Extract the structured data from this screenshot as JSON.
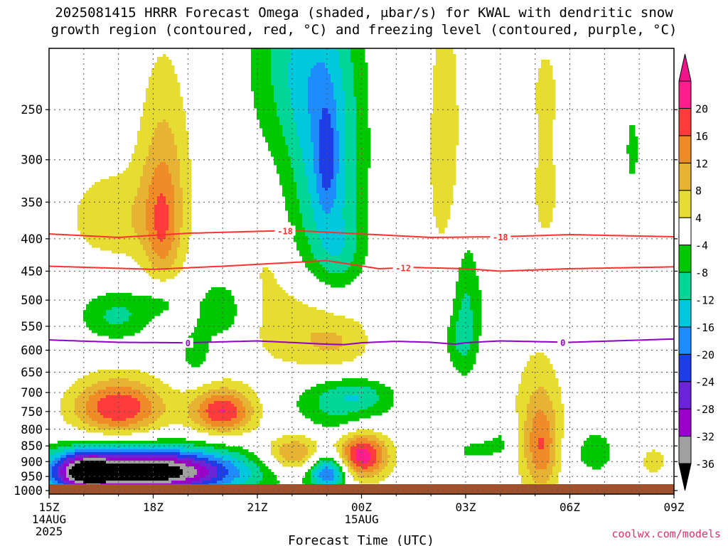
{
  "title": {
    "line1": "2025081415 HRRR Forecast Omega (shaded, μbar/s) for KWAL with dendritic snow",
    "line2": "growth region (contoured, red, °C) and freezing level (contoured, purple, °C)"
  },
  "credit": "coolwx.com/models",
  "chart_data": {
    "type": "heatmap",
    "xlabel": "Forecast Time (UTC)",
    "ylabel": "",
    "x_ticks": [
      {
        "hour": 0,
        "label": "15Z",
        "sub1": "14AUG",
        "sub2": "2025"
      },
      {
        "hour": 3,
        "label": "18Z",
        "sub1": "",
        "sub2": ""
      },
      {
        "hour": 6,
        "label": "21Z",
        "sub1": "",
        "sub2": ""
      },
      {
        "hour": 9,
        "label": "00Z",
        "sub1": "15AUG",
        "sub2": ""
      },
      {
        "hour": 12,
        "label": "03Z",
        "sub1": "",
        "sub2": ""
      },
      {
        "hour": 15,
        "label": "06Z",
        "sub1": "",
        "sub2": ""
      },
      {
        "hour": 18,
        "label": "09Z",
        "sub1": "",
        "sub2": ""
      }
    ],
    "xlim": [
      0,
      18
    ],
    "y_ticks": [
      "250",
      "300",
      "350",
      "400",
      "450",
      "500",
      "550",
      "600",
      "650",
      "700",
      "750",
      "800",
      "850",
      "900",
      "950",
      "1000"
    ],
    "ylim_hpa": [
      200,
      1013
    ],
    "y_scale": "log-pressure",
    "surface_hpa": 1013,
    "colorbar": {
      "labels": [
        "20",
        "16",
        "12",
        "8",
        "4",
        "-4",
        "-8",
        "-12",
        "-16",
        "-20",
        "-24",
        "-28",
        "-32",
        "-36"
      ],
      "bins": [
        {
          "lo": -36,
          "hi": -32,
          "color": "#a0a0a0"
        },
        {
          "lo": -32,
          "hi": -28,
          "color": "#9a00c8"
        },
        {
          "lo": -28,
          "hi": -24,
          "color": "#6c24d8"
        },
        {
          "lo": -24,
          "hi": -20,
          "color": "#1e3ce8"
        },
        {
          "lo": -20,
          "hi": -16,
          "color": "#1e8cff"
        },
        {
          "lo": -16,
          "hi": -12,
          "color": "#00c8dc"
        },
        {
          "lo": -12,
          "hi": -8,
          "color": "#00d696"
        },
        {
          "lo": -8,
          "hi": -4,
          "color": "#00c800"
        },
        {
          "lo": -4,
          "hi": 4,
          "color": "#ffffff"
        },
        {
          "lo": 4,
          "hi": 8,
          "color": "#e6dc32"
        },
        {
          "lo": 8,
          "hi": 12,
          "color": "#e6b432"
        },
        {
          "lo": 12,
          "hi": 16,
          "color": "#f08c28"
        },
        {
          "lo": 16,
          "hi": 20,
          "color": "#ff3c3c"
        },
        {
          "lo": 20,
          "hi": 24,
          "color": "#ff1e8c"
        }
      ],
      "under_color": "#000000",
      "over_color": "#f0148c"
    },
    "omega_features": [
      {
        "t": 1.75,
        "p": 370,
        "st": 0.9,
        "sp": 45,
        "amp": 7
      },
      {
        "t": 3.3,
        "p": 340,
        "st": 0.55,
        "sp": 95,
        "amp": 11
      },
      {
        "t": 3.25,
        "p": 390,
        "st": 0.3,
        "sp": 50,
        "amp": 6
      },
      {
        "t": 1.95,
        "p": 530,
        "st": 0.75,
        "sp": 35,
        "amp": -9
      },
      {
        "t": 3.3,
        "p": 500,
        "st": 0.5,
        "sp": 25,
        "amp": -6
      },
      {
        "t": 5.0,
        "p": 520,
        "st": 0.55,
        "sp": 45,
        "amp": -8
      },
      {
        "t": 4.2,
        "p": 610,
        "st": 0.35,
        "sp": 40,
        "amp": -6
      },
      {
        "t": 2.0,
        "p": 740,
        "st": 0.95,
        "sp": 55,
        "amp": 20
      },
      {
        "t": 5.0,
        "p": 750,
        "st": 0.65,
        "sp": 45,
        "amp": 20
      },
      {
        "t": 2.8,
        "p": 935,
        "st": 1.95,
        "sp": 55,
        "amp": -42
      },
      {
        "t": 1.0,
        "p": 935,
        "st": 0.55,
        "sp": 48,
        "amp": -18
      },
      {
        "t": 6.8,
        "p": 845,
        "st": 0.45,
        "sp": 42,
        "amp": -4
      },
      {
        "t": 7.0,
        "p": 870,
        "st": 0.6,
        "sp": 45,
        "amp": 17
      },
      {
        "t": 8.05,
        "p": 935,
        "st": 0.4,
        "sp": 45,
        "amp": -22
      },
      {
        "t": 8.4,
        "p": 790,
        "st": 0.9,
        "sp": 40,
        "amp": -5
      },
      {
        "t": 9.0,
        "p": 880,
        "st": 0.55,
        "sp": 55,
        "amp": 23
      },
      {
        "t": 8.5,
        "p": 715,
        "st": 1.0,
        "sp": 40,
        "amp": -10
      },
      {
        "t": 9.0,
        "p": 705,
        "st": 0.5,
        "sp": 25,
        "amp": -3
      },
      {
        "t": 7.4,
        "p": 550,
        "st": 1.3,
        "sp": 70,
        "amp": 8
      },
      {
        "t": 8.3,
        "p": 590,
        "st": 0.6,
        "sp": 35,
        "amp": 4
      },
      {
        "t": 6.2,
        "p": 440,
        "st": 0.5,
        "sp": 40,
        "amp": 3
      },
      {
        "t": 8.0,
        "p": 320,
        "st": 0.75,
        "sp": 115,
        "amp": -14
      },
      {
        "t": 8.0,
        "p": 300,
        "st": 0.2,
        "sp": 40,
        "amp": -8
      },
      {
        "t": 7.1,
        "p": 210,
        "st": 1.0,
        "sp": 60,
        "amp": -9
      },
      {
        "t": 8.4,
        "p": 430,
        "st": 0.5,
        "sp": 40,
        "amp": -5
      },
      {
        "t": 11.4,
        "p": 290,
        "st": 0.45,
        "sp": 130,
        "amp": 6
      },
      {
        "t": 12.0,
        "p": 520,
        "st": 0.3,
        "sp": 100,
        "amp": -9
      },
      {
        "t": 11.7,
        "p": 580,
        "st": 0.35,
        "sp": 40,
        "amp": -4
      },
      {
        "t": 12.6,
        "p": 500,
        "st": 0.15,
        "sp": 60,
        "amp": -2
      },
      {
        "t": 12.2,
        "p": 865,
        "st": 0.35,
        "sp": 22,
        "amp": -5
      },
      {
        "t": 12.9,
        "p": 855,
        "st": 0.35,
        "sp": 22,
        "amp": -5
      },
      {
        "t": 13.1,
        "p": 800,
        "st": 0.3,
        "sp": 30,
        "amp": -5
      },
      {
        "t": 14.1,
        "p": 800,
        "st": 0.55,
        "sp": 150,
        "amp": 9
      },
      {
        "t": 14.2,
        "p": 860,
        "st": 0.3,
        "sp": 90,
        "amp": 8
      },
      {
        "t": 14.3,
        "p": 330,
        "st": 0.4,
        "sp": 75,
        "amp": 5
      },
      {
        "t": 14.3,
        "p": 230,
        "st": 0.25,
        "sp": 25,
        "amp": 4
      },
      {
        "t": 13.0,
        "p": 260,
        "st": 0.15,
        "sp": 15,
        "amp": -4
      },
      {
        "t": 15.0,
        "p": 380,
        "st": 0.15,
        "sp": 20,
        "amp": -4
      },
      {
        "t": 15.7,
        "p": 870,
        "st": 0.55,
        "sp": 60,
        "amp": -6
      },
      {
        "t": 16.0,
        "p": 340,
        "st": 0.2,
        "sp": 45,
        "amp": 4
      },
      {
        "t": 16.8,
        "p": 290,
        "st": 0.2,
        "sp": 40,
        "amp": -5
      },
      {
        "t": 17.4,
        "p": 900,
        "st": 0.45,
        "sp": 55,
        "amp": 5
      }
    ],
    "contours": [
      {
        "label": "-18",
        "color": "#ff3030",
        "label_hours": [
          6.8,
          13.0
        ],
        "points": [
          [
            0,
            393
          ],
          [
            2,
            398
          ],
          [
            4,
            392
          ],
          [
            7,
            388
          ],
          [
            9,
            393
          ],
          [
            11,
            398
          ],
          [
            13,
            397
          ],
          [
            15,
            394
          ],
          [
            18,
            397
          ]
        ]
      },
      {
        "label": "-12",
        "color": "#ff3030",
        "label_hours": [
          10.2
        ],
        "points": [
          [
            0,
            442
          ],
          [
            3,
            447
          ],
          [
            5,
            442
          ],
          [
            8,
            433
          ],
          [
            9.5,
            446
          ],
          [
            10.5,
            444
          ],
          [
            12,
            446
          ],
          [
            13,
            450
          ],
          [
            15,
            446
          ],
          [
            18,
            443
          ]
        ]
      },
      {
        "label": "0",
        "color": "#9000c8",
        "label_hours": [
          4.0,
          14.8
        ],
        "points": [
          [
            0,
            578
          ],
          [
            2,
            583
          ],
          [
            4,
            584
          ],
          [
            6,
            580
          ],
          [
            8,
            587
          ],
          [
            8.5,
            588
          ],
          [
            9,
            584
          ],
          [
            10,
            581
          ],
          [
            11,
            583
          ],
          [
            11.7,
            587
          ],
          [
            12,
            584
          ],
          [
            13,
            580
          ],
          [
            15,
            583
          ],
          [
            18,
            576
          ]
        ]
      }
    ]
  }
}
